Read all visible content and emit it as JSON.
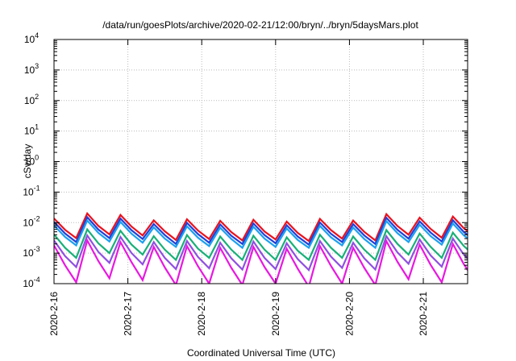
{
  "chart_data": {
    "type": "line",
    "title": "/data/run/goesPlots/archive/2020-02-21/12:00/bryn/../bryn/5daysMars.plot",
    "xlabel": "Coordinated Universal Time (UTC)",
    "ylabel": "cSv/day",
    "y_scale": "log",
    "ylim": [
      0.0001,
      10000
    ],
    "y_ticks": [
      {
        "base": "10",
        "exp": "-4",
        "value": 0.0001
      },
      {
        "base": "10",
        "exp": "-3",
        "value": 0.001
      },
      {
        "base": "10",
        "exp": "-2",
        "value": 0.01
      },
      {
        "base": "10",
        "exp": "-1",
        "value": 0.1
      },
      {
        "base": "10",
        "exp": "0",
        "value": 1
      },
      {
        "base": "10",
        "exp": "1",
        "value": 10
      },
      {
        "base": "10",
        "exp": "2",
        "value": 100
      },
      {
        "base": "10",
        "exp": "3",
        "value": 1000
      },
      {
        "base": "10",
        "exp": "4",
        "value": 10000
      }
    ],
    "x_range": [
      "2020-02-16",
      "2020-02-21 14:24"
    ],
    "x_ticks": [
      "2020-2-16",
      "2020-2-17",
      "2020-2-18",
      "2020-2-19",
      "2020-2-20",
      "2020-2-21"
    ],
    "grid": true,
    "sample_interval_hours": 3.6,
    "series": [
      {
        "color": "#e8131f",
        "values": [
          0.0137,
          0.0058,
          0.0031,
          0.0199,
          0.0078,
          0.0041,
          0.0179,
          0.0074,
          0.0038,
          0.0119,
          0.0052,
          0.0027,
          0.0129,
          0.0055,
          0.0029,
          0.0115,
          0.0049,
          0.0026,
          0.0124,
          0.0051,
          0.0028,
          0.0108,
          0.0046,
          0.0025,
          0.0133,
          0.0057,
          0.003,
          0.0117,
          0.005,
          0.0026,
          0.019,
          0.0077,
          0.004,
          0.0145,
          0.0062,
          0.0032,
          0.0158,
          0.0065,
          0.0034,
          0.0126,
          0.0053,
          0.0028
        ]
      },
      {
        "color": "#2040d8",
        "values": [
          0.0105,
          0.0044,
          0.0023,
          0.0151,
          0.0059,
          0.0031,
          0.0136,
          0.0056,
          0.0029,
          0.009,
          0.0039,
          0.002,
          0.0098,
          0.0042,
          0.0022,
          0.0087,
          0.0037,
          0.002,
          0.0094,
          0.0039,
          0.0021,
          0.0082,
          0.0035,
          0.0019,
          0.0101,
          0.0043,
          0.0023,
          0.0089,
          0.0038,
          0.002,
          0.0144,
          0.0058,
          0.003,
          0.011,
          0.0047,
          0.0024,
          0.012,
          0.0049,
          0.0026,
          0.0096,
          0.004,
          0.0021
        ]
      },
      {
        "color": "#1ca0f0",
        "values": [
          0.0081,
          0.0034,
          0.0018,
          0.0117,
          0.0046,
          0.0024,
          0.0105,
          0.0043,
          0.0022,
          0.007,
          0.003,
          0.0016,
          0.0076,
          0.0032,
          0.0017,
          0.0068,
          0.0029,
          0.0015,
          0.0073,
          0.003,
          0.0016,
          0.0064,
          0.0027,
          0.0015,
          0.0078,
          0.0033,
          0.0018,
          0.0069,
          0.0029,
          0.0015,
          0.0112,
          0.0045,
          0.0023,
          0.0085,
          0.0036,
          0.0019,
          0.0093,
          0.0038,
          0.002,
          0.0074,
          0.0031,
          0.0016
        ]
      },
      {
        "color": "#18b078",
        "values": [
          0.0041,
          0.0015,
          0.0007,
          0.006,
          0.0021,
          0.001,
          0.0054,
          0.0019,
          0.0009,
          0.0036,
          0.0013,
          0.0006,
          0.0039,
          0.0014,
          0.0007,
          0.0035,
          0.0013,
          0.0006,
          0.0037,
          0.0013,
          0.0006,
          0.0033,
          0.0012,
          0.0006,
          0.004,
          0.0015,
          0.0007,
          0.0035,
          0.0013,
          0.0006,
          0.0057,
          0.002,
          0.0009,
          0.0044,
          0.0016,
          0.0007,
          0.0047,
          0.0017,
          0.0008,
          0.0038,
          0.0014,
          0.0006
        ]
      },
      {
        "color": "#9050e0",
        "values": [
          0.0026,
          0.0008,
          0.00035,
          0.0038,
          0.0011,
          0.00048,
          0.0034,
          0.001,
          0.00043,
          0.0023,
          0.0007,
          0.0003,
          0.0025,
          0.00075,
          0.00032,
          0.0022,
          0.00068,
          0.00029,
          0.0024,
          0.0007,
          0.0003,
          0.0021,
          0.00064,
          0.00028,
          0.0025,
          0.00077,
          0.00033,
          0.0022,
          0.00068,
          0.00029,
          0.0036,
          0.00105,
          0.00045,
          0.0028,
          0.00084,
          0.00036,
          0.003,
          0.00088,
          0.00038,
          0.0024,
          0.00072,
          0.00031
        ]
      },
      {
        "color": "#e818e0",
        "values": [
          0.0018,
          0.0004,
          0.00011,
          0.0026,
          0.00055,
          0.00015,
          0.0023,
          0.0005,
          0.00013,
          0.0016,
          0.00034,
          9e-05,
          0.0017,
          0.00037,
          0.0001,
          0.0015,
          0.00033,
          9e-05,
          0.0016,
          0.00035,
          0.0001,
          0.0014,
          0.00031,
          8e-05,
          0.0017,
          0.00038,
          0.0001,
          0.0015,
          0.00033,
          9e-05,
          0.0025,
          0.00052,
          0.00014,
          0.0019,
          0.00041,
          0.00011,
          0.002,
          0.00043,
          0.00012,
          0.0016,
          0.00035,
          0.0001
        ]
      }
    ]
  }
}
